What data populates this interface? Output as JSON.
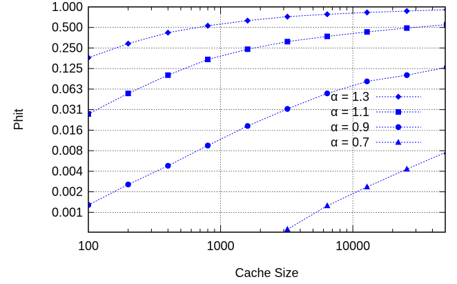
{
  "chart_data": {
    "type": "line",
    "xlabel": "Cache Size",
    "ylabel": "Phit",
    "x_scale": "log",
    "y_scale": "log2",
    "xlim": [
      100,
      50000
    ],
    "ylim": [
      0.0005,
      1.0
    ],
    "x_ticks": [
      {
        "value": 100,
        "label": "100"
      },
      {
        "value": 1000,
        "label": "1000"
      },
      {
        "value": 10000,
        "label": "10000"
      }
    ],
    "y_ticks": [
      {
        "value": 1.0,
        "label": "1.000"
      },
      {
        "value": 0.5,
        "label": "0.500"
      },
      {
        "value": 0.25,
        "label": "0.250"
      },
      {
        "value": 0.125,
        "label": "0.125"
      },
      {
        "value": 0.0625,
        "label": "0.063"
      },
      {
        "value": 0.03125,
        "label": "0.031"
      },
      {
        "value": 0.015625,
        "label": "0.016"
      },
      {
        "value": 0.0078125,
        "label": "0.008"
      },
      {
        "value": 0.00390625,
        "label": "0.004"
      },
      {
        "value": 0.001953125,
        "label": "0.002"
      },
      {
        "value": 0.0009765625,
        "label": "0.001"
      }
    ],
    "grid": true,
    "legend_position": "center-right",
    "line_color": "#0000ff",
    "series": [
      {
        "name": "α = 1.3",
        "marker": "diamond",
        "points": [
          [
            100,
            0.18
          ],
          [
            200,
            0.29
          ],
          [
            400,
            0.42
          ],
          [
            800,
            0.53
          ],
          [
            1600,
            0.63
          ],
          [
            3200,
            0.72
          ],
          [
            6400,
            0.78
          ],
          [
            12800,
            0.83
          ],
          [
            25600,
            0.87
          ],
          [
            51200,
            0.91
          ]
        ]
      },
      {
        "name": "α = 1.1",
        "marker": "square",
        "points": [
          [
            100,
            0.027
          ],
          [
            200,
            0.054
          ],
          [
            400,
            0.1
          ],
          [
            800,
            0.17
          ],
          [
            1600,
            0.24
          ],
          [
            3200,
            0.31
          ],
          [
            6400,
            0.37
          ],
          [
            12800,
            0.43
          ],
          [
            25600,
            0.49
          ],
          [
            51200,
            0.55
          ]
        ]
      },
      {
        "name": "α = 0.9",
        "marker": "circle",
        "points": [
          [
            100,
            0.00125
          ],
          [
            200,
            0.0025
          ],
          [
            400,
            0.0047
          ],
          [
            800,
            0.0093
          ],
          [
            1600,
            0.018
          ],
          [
            3200,
            0.032
          ],
          [
            6400,
            0.054
          ],
          [
            12800,
            0.081
          ],
          [
            25600,
            0.1
          ],
          [
            51200,
            0.13
          ]
        ]
      },
      {
        "name": "α = 0.7",
        "marker": "triangle",
        "points": [
          [
            3200,
            0.00055
          ],
          [
            6400,
            0.00122
          ],
          [
            12800,
            0.0023
          ],
          [
            25600,
            0.0042
          ],
          [
            51200,
            0.0075
          ]
        ]
      }
    ]
  }
}
